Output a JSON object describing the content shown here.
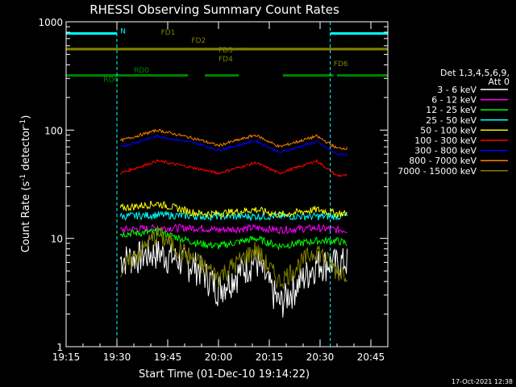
{
  "chart_data": {
    "type": "line",
    "title": "RHESSI Observing Summary Count Rates",
    "xlabel": "Start Time (01-Dec-10 19:14:22)",
    "ylabel": "Count Rate (s",
    "ylabel_sup1": "-1",
    "ylabel_mid": " detector",
    "ylabel_sup2": "-1",
    "ylabel_end": ")",
    "footer_date": "17-Oct-2021 12:38",
    "yscale": "log",
    "ylim": [
      1,
      1000
    ],
    "xlim_minutes": [
      0,
      95
    ],
    "x_ticks": [
      {
        "label": "19:15",
        "min": 0
      },
      {
        "label": "19:30",
        "min": 15
      },
      {
        "label": "19:45",
        "min": 30
      },
      {
        "label": "20:00",
        "min": 45
      },
      {
        "label": "20:15",
        "min": 60
      },
      {
        "label": "20:30",
        "min": 75
      },
      {
        "label": "20:45",
        "min": 90
      }
    ],
    "y_ticks": [
      {
        "label": "1",
        "value": 1
      },
      {
        "label": "10",
        "value": 10
      },
      {
        "label": "100",
        "value": 100
      },
      {
        "label": "1000",
        "value": 1000
      }
    ],
    "legend_header_line1": "Det 1,3,4,5,6,9,",
    "legend_header_line2": "Att 0",
    "series": [
      {
        "name": "3 - 6 keV",
        "color": "#ffffff",
        "values": [
          6.5,
          7.5,
          5.5,
          3.5,
          6.5,
          2.5,
          6.0,
          6.0,
          6.2
        ]
      },
      {
        "name": "6 - 12 keV",
        "color": "#ff00ff",
        "values": [
          12.0,
          12.5,
          12.5,
          12.0,
          12.5,
          12.0,
          12.5,
          12.0,
          12.0
        ]
      },
      {
        "name": "12 - 25 keV",
        "color": "#00ff00",
        "values": [
          11.0,
          11.5,
          9.0,
          8.5,
          10.0,
          8.5,
          9.5,
          9.5,
          9.0
        ]
      },
      {
        "name": "25 - 50 keV",
        "color": "#00ffff",
        "values": [
          16.0,
          16.5,
          16.0,
          16.0,
          16.0,
          16.0,
          16.0,
          16.0,
          16.0
        ]
      },
      {
        "name": "50 - 100 keV",
        "color": "#ffff00",
        "values": [
          19.0,
          21.0,
          17.0,
          17.0,
          18.5,
          16.5,
          18.5,
          17.0,
          17.0
        ]
      },
      {
        "name": "100 - 300 keV",
        "color": "#ff0000",
        "values": [
          40.0,
          52.0,
          44.0,
          40.0,
          50.0,
          40.0,
          52.0,
          38.0,
          38.0
        ]
      },
      {
        "name": "300 - 800 keV",
        "color": "#0000ff",
        "values": [
          70.0,
          88.0,
          75.0,
          65.0,
          80.0,
          62.0,
          78.0,
          60.0,
          60.0
        ]
      },
      {
        "name": "800 - 7000 keV",
        "color": "#ff8000",
        "values": [
          80.0,
          100.0,
          82.0,
          72.0,
          90.0,
          70.0,
          88.0,
          68.0,
          68.0
        ]
      },
      {
        "name": "7000 - 15000 keV",
        "color": "#808000",
        "values": [
          5.0,
          11.0,
          6.0,
          4.5,
          8.0,
          4.0,
          8.0,
          5.0,
          5.0
        ]
      }
    ],
    "series_x_minutes": [
      16,
      27,
      39,
      45,
      56,
      63,
      74,
      80,
      83
    ],
    "flags": [
      {
        "label": "N",
        "color": "#00ffff",
        "y": 780
      },
      {
        "label": "FD1",
        "color": "#808000",
        "y": 560
      },
      {
        "label": "FD2",
        "color": "#808000",
        "y": 560
      },
      {
        "label": "FD3",
        "color": "#808000",
        "y": 560
      },
      {
        "label": "FD4",
        "color": "#808000",
        "y": 560
      },
      {
        "label": "FD6",
        "color": "#808000",
        "y": 560
      },
      {
        "label": "RD0",
        "color": "#008000",
        "y": 320
      },
      {
        "label": "RD6",
        "color": "#008000",
        "y": 320
      }
    ]
  }
}
